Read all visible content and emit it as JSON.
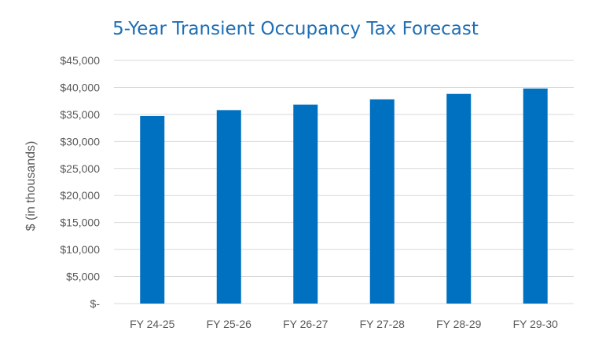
{
  "chart_data": {
    "type": "bar",
    "title": "5-Year Transient Occupancy Tax Forecast",
    "xlabel": "",
    "ylabel": "$ (in thousands)",
    "categories": [
      "FY 24-25",
      "FY 25-26",
      "FY 26-27",
      "FY 27-28",
      "FY 28-29",
      "FY 29-30"
    ],
    "values": [
      34700,
      35800,
      36800,
      37800,
      38800,
      39800
    ],
    "ylim": [
      0,
      45000
    ],
    "yticks": [
      0,
      5000,
      10000,
      15000,
      20000,
      25000,
      30000,
      35000,
      40000,
      45000
    ],
    "ytick_labels": [
      "$-",
      "$5,000",
      "$10,000",
      "$15,000",
      "$20,000",
      "$25,000",
      "$30,000",
      "$35,000",
      "$40,000",
      "$45,000"
    ],
    "grid": true,
    "legend": "none",
    "colors": {
      "bar": "#0070C0",
      "title": "#1F6FB5",
      "grid": "#D9D9D9",
      "text": "#595959"
    }
  }
}
